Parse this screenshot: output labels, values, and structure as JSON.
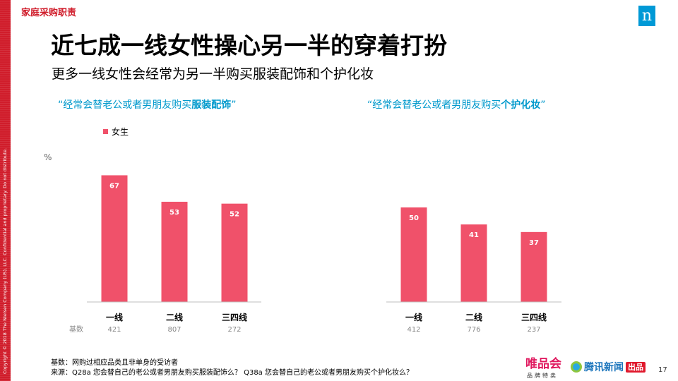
{
  "header": {
    "section_tag": "家庭采购职责",
    "logo_letter": "n",
    "title": "近七成一线女性操心另一半的穿着打扮",
    "subtitle": "更多一线女性会经常为另一半购买服装配饰和个护化妆"
  },
  "copyright": "Copyright © 2018 The Nielsen Company (US), LLC. Confidential and proprietary. Do not distribute.",
  "legend": {
    "series_name": "女生"
  },
  "unit_label": "%",
  "base_label": "基数",
  "chart_data": [
    {
      "type": "bar",
      "title_prefix": "“经常会替老公或者男朋友购买",
      "title_highlight": "服装配饰",
      "title_suffix": "”",
      "categories": [
        "一线",
        "二线",
        "三四线"
      ],
      "series": [
        {
          "name": "女生",
          "values": [
            67,
            53,
            52
          ]
        }
      ],
      "bases": [
        "421",
        "807",
        "272"
      ],
      "ylim": [
        0,
        100
      ],
      "color": "#f0516a"
    },
    {
      "type": "bar",
      "title_prefix": "“经常会替老公或者男朋友购买",
      "title_highlight": "个护化妆",
      "title_suffix": "”",
      "categories": [
        "一线",
        "二线",
        "三四线"
      ],
      "series": [
        {
          "name": "女生",
          "values": [
            50,
            41,
            37
          ]
        }
      ],
      "bases": [
        "412",
        "776",
        "237"
      ],
      "ylim": [
        0,
        100
      ],
      "color": "#f0516a"
    }
  ],
  "footer": {
    "base_note": "基数：网购过相应品类且非单身的受访者",
    "source_note": "来源：Q28a 您会替自己的老公或者男朋友购买服装配饰么？ Q38a 您会替自己的老公或者男朋友购买个护化妆么？"
  },
  "brands": {
    "vip_name": "唯品会",
    "vip_sub": "品牌特卖",
    "qq_name": "腾讯新闻",
    "qq_badge": "出品"
  },
  "page_number": "17"
}
